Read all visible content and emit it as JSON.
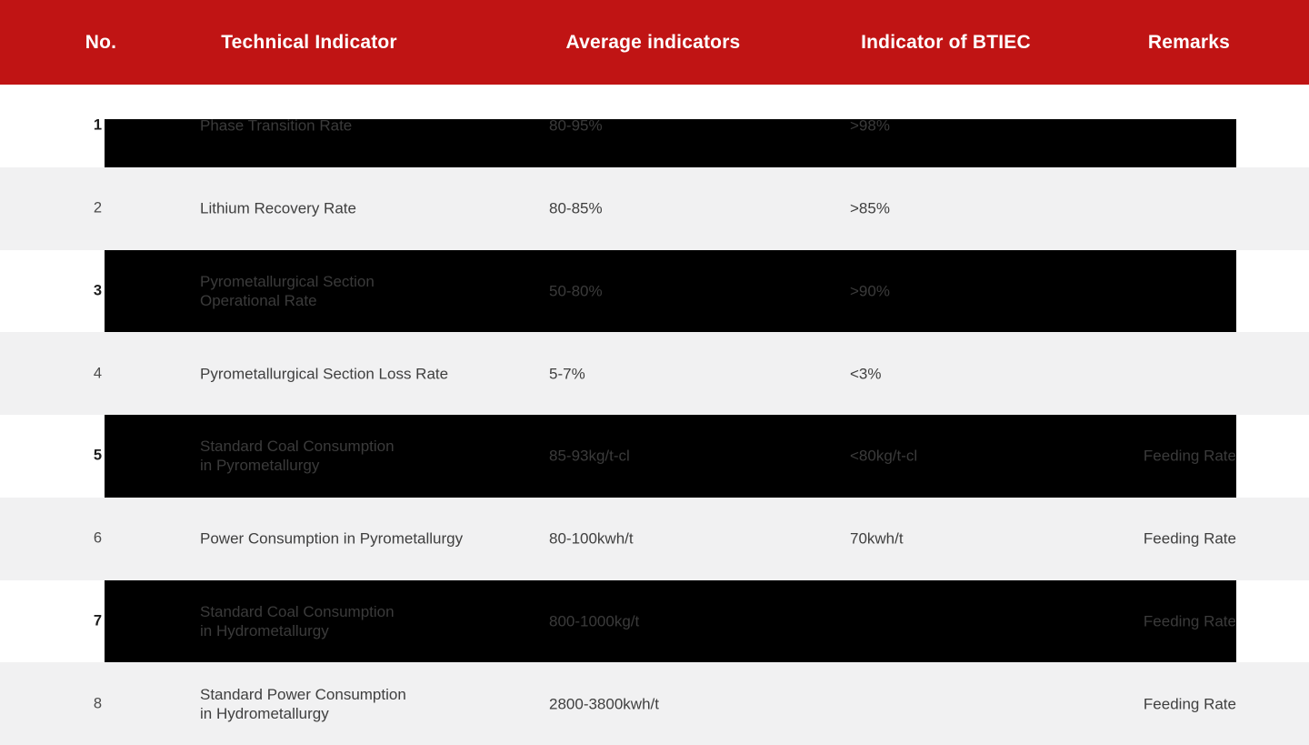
{
  "header": {
    "columns": [
      "No.",
      "Technical Indicator",
      "Average indicators",
      "Indicator of BTIEC",
      "Remarks"
    ]
  },
  "rows": [
    {
      "no": "1",
      "indicator": "Phase Transition Rate",
      "average": "80-95%",
      "btiec": ">98%",
      "remarks": ""
    },
    {
      "no": "2",
      "indicator": "Lithium Recovery Rate",
      "average": "80-85%",
      "btiec": ">85%",
      "remarks": ""
    },
    {
      "no": "3",
      "indicator": "Pyrometallurgical Section\nOperational Rate",
      "average": "50-80%",
      "btiec": ">90%",
      "remarks": ""
    },
    {
      "no": "4",
      "indicator": "Pyrometallurgical Section Loss Rate",
      "average": "5-7%",
      "btiec": "<3%",
      "remarks": ""
    },
    {
      "no": "5",
      "indicator": "Standard Coal Consumption\nin Pyrometallurgy",
      "average": "85-93kg/t-cl",
      "btiec": "<80kg/t-cl",
      "remarks": "Feeding Rate"
    },
    {
      "no": "6",
      "indicator": "Power Consumption in Pyrometallurgy",
      "average": "80-100kwh/t",
      "btiec": "70kwh/t",
      "remarks": "Feeding Rate"
    },
    {
      "no": "7",
      "indicator": "Standard Coal Consumption\nin Hydrometallurgy",
      "average": "800-1000kg/t",
      "btiec": "",
      "remarks": "Feeding Rate"
    },
    {
      "no": "8",
      "indicator": "Standard Power Consumption\nin Hydrometallurgy",
      "average": "2800-3800kwh/t",
      "btiec": "",
      "remarks": "Feeding Rate"
    }
  ],
  "colors": {
    "header_bg": "#c01414",
    "header_text": "#ffffff",
    "alt_row_bg": "#f1f1f2",
    "overlay_bg": "#000000",
    "body_text": "#3f3f3f",
    "overlay_text": "#3b3b3b"
  }
}
